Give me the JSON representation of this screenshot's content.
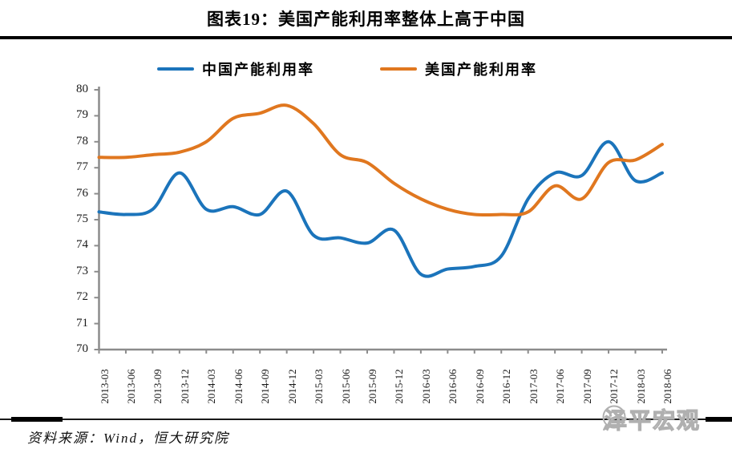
{
  "title": "图表19：美国产能利用率整体上高于中国",
  "legend": [
    {
      "label": "中国产能利用率",
      "color": "#1B74BB"
    },
    {
      "label": "美国产能利用率",
      "color": "#E0771F"
    }
  ],
  "chart_data": {
    "type": "line",
    "smooth": true,
    "grid": false,
    "legend_position": "top",
    "x": [
      "2013-03",
      "2013-06",
      "2013-09",
      "2013-12",
      "2014-03",
      "2014-06",
      "2014-09",
      "2014-12",
      "2015-03",
      "2015-06",
      "2015-09",
      "2015-12",
      "2016-03",
      "2016-06",
      "2016-09",
      "2016-12",
      "2017-03",
      "2017-06",
      "2017-09",
      "2017-12",
      "2018-03",
      "2018-06"
    ],
    "series": [
      {
        "name": "中国产能利用率",
        "color": "#1B74BB",
        "values": [
          75.3,
          75.2,
          75.4,
          76.8,
          75.4,
          75.5,
          75.2,
          76.1,
          74.4,
          74.3,
          74.1,
          74.6,
          72.9,
          73.1,
          73.2,
          73.6,
          75.8,
          76.8,
          76.7,
          78.0,
          76.5,
          76.8
        ]
      },
      {
        "name": "美国产能利用率",
        "color": "#E0771F",
        "values": [
          77.4,
          77.4,
          77.5,
          77.6,
          78.0,
          78.9,
          79.1,
          79.4,
          78.7,
          77.5,
          77.2,
          76.4,
          75.8,
          75.4,
          75.2,
          75.2,
          75.3,
          76.3,
          75.8,
          77.2,
          77.3,
          77.9
        ]
      }
    ],
    "ylim": [
      70,
      80
    ],
    "y_ticks": [
      80,
      79,
      78,
      77,
      76,
      75,
      74,
      73,
      72,
      71,
      70
    ],
    "xlabel": "",
    "ylabel": "",
    "axis_color": "#8C8C8C"
  },
  "source": {
    "label": "资料来源：Wind，恒大研究院"
  },
  "watermark": {
    "text": "泽平宏观",
    "logo": "speech-bubble-face",
    "color": "#b0b0b0"
  }
}
